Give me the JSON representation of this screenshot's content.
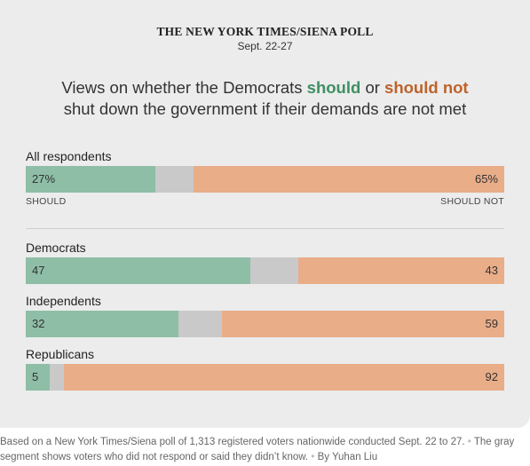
{
  "header": {
    "poll_title": "THE NEW YORK TIMES/SIENA POLL",
    "date": "Sept. 22-27",
    "headline_part1": "Views on whether the Democrats ",
    "headline_should": "should",
    "headline_or": " or ",
    "headline_should_not": "should not",
    "headline_part2": "shut down the government if their demands are not met"
  },
  "axis": {
    "left_label": "SHOULD",
    "right_label": "SHOULD NOT"
  },
  "colors": {
    "should": "#8ebea6",
    "dont_know": "#c9c9c9",
    "should_not": "#e9ad88",
    "should_text": "#3f8f63",
    "should_not_text": "#bd632a"
  },
  "footnote": {
    "text": "Based on a New York Times/Siena poll of 1,313 registered voters nationwide conducted Sept. 22 to 27.",
    "gray_note": "The gray segment shows voters who did not respond or said they didn’t know.",
    "byline": "By Yuhan Liu",
    "separator": "•"
  },
  "chart_data": {
    "type": "bar",
    "orientation": "horizontal-stacked",
    "categories": [
      "All respondents",
      "Democrats",
      "Independents",
      "Republicans"
    ],
    "value_labels": [
      "27%",
      "65%",
      "47",
      "43",
      "32",
      "59",
      "5",
      "92"
    ],
    "series": [
      {
        "name": "SHOULD",
        "values": [
          27,
          47,
          32,
          5
        ]
      },
      {
        "name": "SHOULD NOT",
        "values": [
          65,
          43,
          59,
          92
        ]
      }
    ],
    "xlim": [
      0,
      100
    ]
  }
}
